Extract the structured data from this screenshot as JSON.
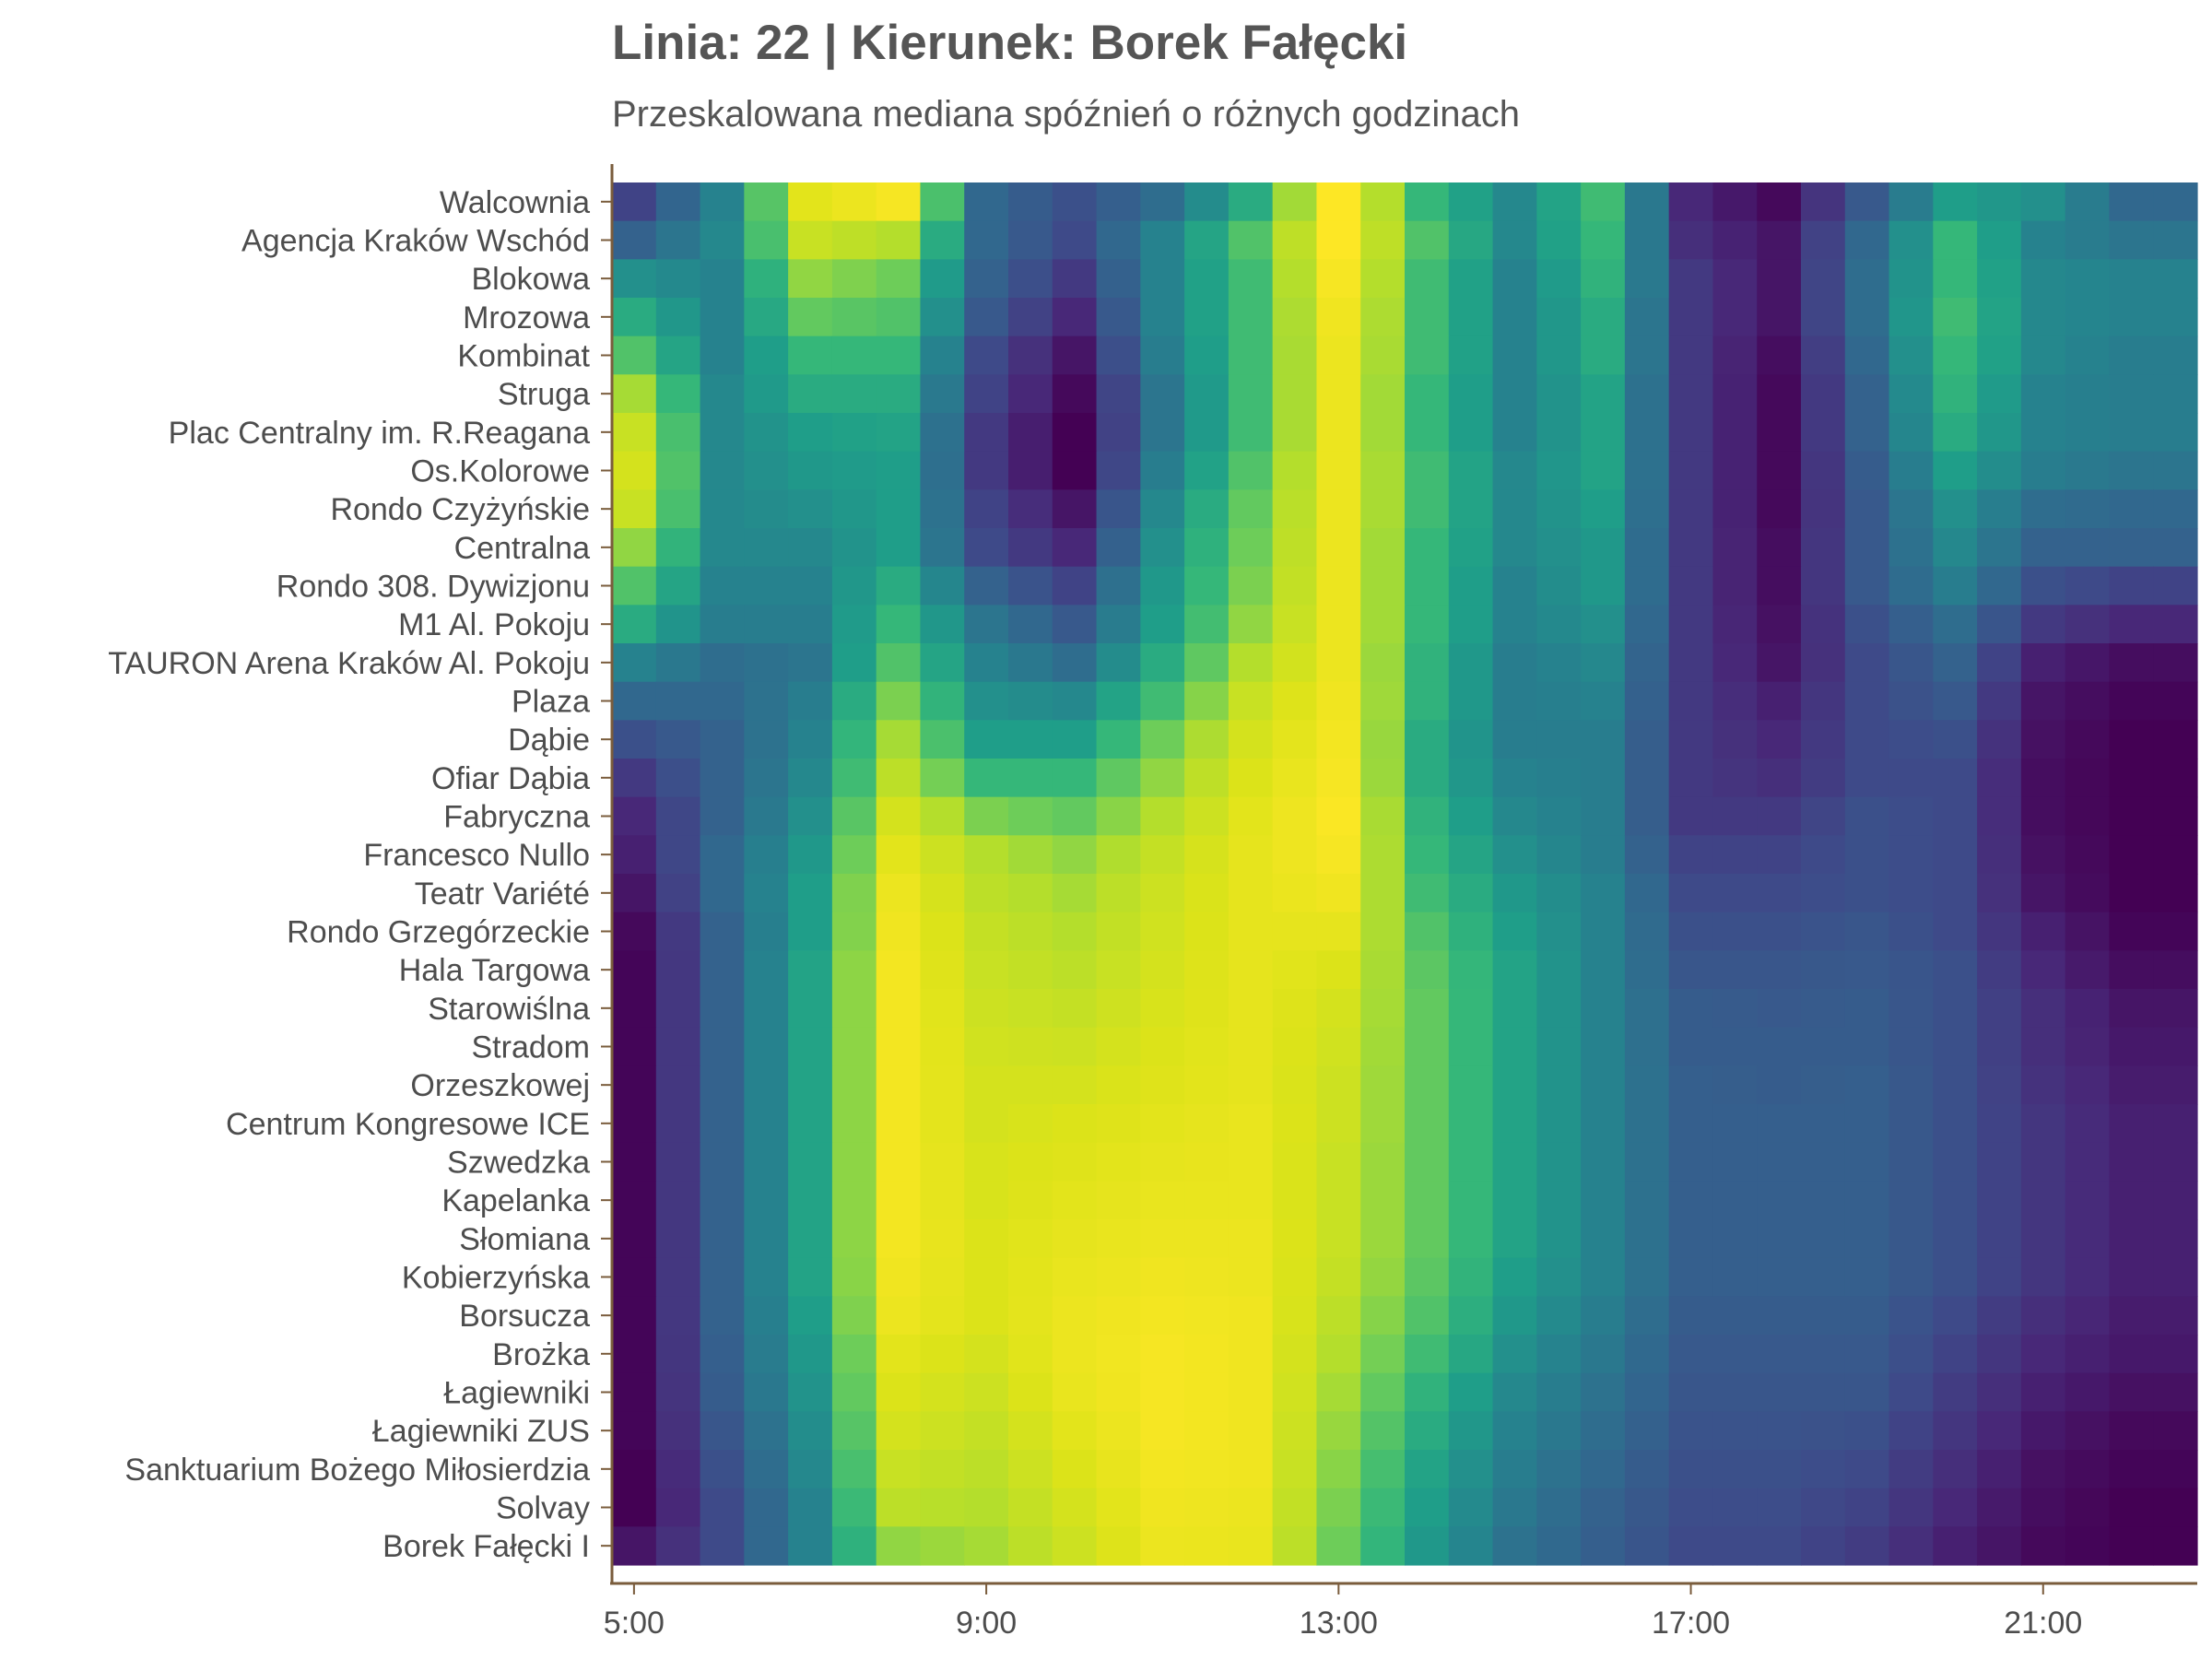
{
  "chart_data": {
    "type": "heatmap",
    "title": "Linia: 22 | Kierunek: Borek Fałęcki",
    "subtitle": "Przeskalowana mediana spóźnień o różnych godzinach",
    "xlabel": "",
    "ylabel": "",
    "colormap": "viridis",
    "value_range": [
      0,
      1
    ],
    "x_hours": [
      5,
      6,
      7,
      8,
      9,
      10,
      11,
      12,
      13,
      14,
      15,
      16,
      17,
      18,
      19,
      20,
      21,
      22
    ],
    "x_ticks": [
      "5:00",
      "9:00",
      "13:00",
      "17:00",
      "21:00"
    ],
    "x_tick_hours": [
      5,
      9,
      13,
      17,
      21
    ],
    "stops": [
      "Walcownia",
      "Agencja Kraków Wschód",
      "Blokowa",
      "Mrozowa",
      "Kombinat",
      "Struga",
      "Plac Centralny im. R.Reagana",
      "Os.Kolorowe",
      "Rondo Czyżyńskie",
      "Centralna",
      "Rondo 308. Dywizjonu",
      "M1 Al. Pokoju",
      "TAURON Arena Kraków Al. Pokoju",
      "Plaza",
      "Dąbie",
      "Ofiar Dąbia",
      "Fabryczna",
      "Francesco Nullo",
      "Teatr Variété",
      "Rondo Grzegórzeckie",
      "Hala Targowa",
      "Starowiślna",
      "Stradom",
      "Orzeszkowej",
      "Centrum Kongresowe ICE",
      "Szwedzka",
      "Kapelanka",
      "Słomiana",
      "Kobierzyńska",
      "Borsucza",
      "Brożka",
      "Łagiewniki",
      "Łagiewniki ZUS",
      "Sanktuarium Bożego Miłosierdzia",
      "Solvay",
      "Borek Fałęcki I"
    ],
    "values": [
      [
        0.18,
        0.4,
        0.92,
        0.98,
        0.3,
        0.22,
        0.32,
        0.55,
        1.0,
        0.6,
        0.42,
        0.62,
        0.1,
        0.02,
        0.25,
        0.5,
        0.45,
        0.3
      ],
      [
        0.28,
        0.42,
        0.85,
        0.8,
        0.3,
        0.2,
        0.4,
        0.65,
        1.0,
        0.65,
        0.42,
        0.6,
        0.12,
        0.05,
        0.3,
        0.6,
        0.4,
        0.35
      ],
      [
        0.45,
        0.4,
        0.75,
        0.7,
        0.28,
        0.15,
        0.4,
        0.62,
        0.98,
        0.62,
        0.4,
        0.58,
        0.15,
        0.05,
        0.32,
        0.6,
        0.42,
        0.4
      ],
      [
        0.55,
        0.4,
        0.68,
        0.65,
        0.25,
        0.1,
        0.4,
        0.62,
        0.96,
        0.62,
        0.4,
        0.55,
        0.15,
        0.05,
        0.32,
        0.62,
        0.42,
        0.4
      ],
      [
        0.65,
        0.4,
        0.6,
        0.6,
        0.2,
        0.05,
        0.38,
        0.62,
        0.95,
        0.62,
        0.4,
        0.55,
        0.15,
        0.03,
        0.3,
        0.6,
        0.42,
        0.38
      ],
      [
        0.78,
        0.42,
        0.55,
        0.55,
        0.18,
        0.02,
        0.35,
        0.62,
        0.95,
        0.6,
        0.4,
        0.52,
        0.15,
        0.02,
        0.28,
        0.58,
        0.4,
        0.38
      ],
      [
        0.85,
        0.42,
        0.5,
        0.52,
        0.15,
        0.0,
        0.35,
        0.62,
        0.95,
        0.6,
        0.4,
        0.52,
        0.15,
        0.02,
        0.28,
        0.55,
        0.4,
        0.38
      ],
      [
        0.88,
        0.42,
        0.48,
        0.5,
        0.15,
        0.0,
        0.38,
        0.65,
        0.95,
        0.62,
        0.42,
        0.52,
        0.15,
        0.02,
        0.26,
        0.5,
        0.38,
        0.35
      ],
      [
        0.85,
        0.42,
        0.45,
        0.5,
        0.18,
        0.05,
        0.42,
        0.68,
        0.95,
        0.62,
        0.42,
        0.5,
        0.15,
        0.02,
        0.25,
        0.45,
        0.32,
        0.3
      ],
      [
        0.75,
        0.42,
        0.42,
        0.5,
        0.2,
        0.1,
        0.45,
        0.7,
        0.95,
        0.6,
        0.42,
        0.48,
        0.15,
        0.03,
        0.25,
        0.42,
        0.28,
        0.28
      ],
      [
        0.65,
        0.4,
        0.4,
        0.55,
        0.28,
        0.18,
        0.48,
        0.72,
        0.95,
        0.6,
        0.4,
        0.48,
        0.15,
        0.03,
        0.25,
        0.38,
        0.22,
        0.18
      ],
      [
        0.55,
        0.38,
        0.38,
        0.6,
        0.35,
        0.25,
        0.5,
        0.75,
        0.95,
        0.6,
        0.4,
        0.45,
        0.15,
        0.04,
        0.22,
        0.32,
        0.15,
        0.1
      ],
      [
        0.4,
        0.32,
        0.35,
        0.65,
        0.4,
        0.32,
        0.55,
        0.8,
        0.95,
        0.58,
        0.38,
        0.42,
        0.15,
        0.05,
        0.2,
        0.28,
        0.08,
        0.03
      ],
      [
        0.3,
        0.3,
        0.38,
        0.72,
        0.45,
        0.42,
        0.62,
        0.85,
        0.96,
        0.58,
        0.38,
        0.4,
        0.15,
        0.08,
        0.2,
        0.25,
        0.05,
        0.01
      ],
      [
        0.22,
        0.28,
        0.4,
        0.78,
        0.5,
        0.5,
        0.7,
        0.88,
        0.97,
        0.55,
        0.38,
        0.38,
        0.15,
        0.1,
        0.2,
        0.22,
        0.04,
        0.0
      ],
      [
        0.15,
        0.28,
        0.42,
        0.82,
        0.6,
        0.6,
        0.75,
        0.9,
        0.98,
        0.55,
        0.4,
        0.38,
        0.15,
        0.12,
        0.2,
        0.2,
        0.03,
        0.0
      ],
      [
        0.1,
        0.28,
        0.45,
        0.88,
        0.72,
        0.68,
        0.8,
        0.92,
        0.99,
        0.58,
        0.42,
        0.38,
        0.15,
        0.15,
        0.22,
        0.2,
        0.03,
        0.0
      ],
      [
        0.08,
        0.3,
        0.48,
        0.92,
        0.8,
        0.75,
        0.84,
        0.93,
        0.98,
        0.6,
        0.45,
        0.38,
        0.18,
        0.18,
        0.22,
        0.2,
        0.04,
        0.0
      ],
      [
        0.05,
        0.3,
        0.5,
        0.95,
        0.82,
        0.78,
        0.86,
        0.93,
        0.96,
        0.62,
        0.48,
        0.4,
        0.2,
        0.2,
        0.22,
        0.2,
        0.05,
        0.0
      ],
      [
        0.02,
        0.28,
        0.5,
        0.96,
        0.84,
        0.8,
        0.87,
        0.93,
        0.93,
        0.65,
        0.5,
        0.4,
        0.22,
        0.22,
        0.24,
        0.2,
        0.08,
        0.01
      ],
      [
        0.01,
        0.28,
        0.52,
        0.97,
        0.85,
        0.82,
        0.88,
        0.93,
        0.9,
        0.67,
        0.52,
        0.4,
        0.24,
        0.24,
        0.25,
        0.22,
        0.1,
        0.03
      ],
      [
        0.01,
        0.28,
        0.52,
        0.97,
        0.86,
        0.84,
        0.89,
        0.93,
        0.88,
        0.68,
        0.52,
        0.4,
        0.26,
        0.25,
        0.26,
        0.22,
        0.12,
        0.05
      ],
      [
        0.01,
        0.28,
        0.52,
        0.97,
        0.87,
        0.86,
        0.9,
        0.93,
        0.87,
        0.68,
        0.52,
        0.4,
        0.26,
        0.26,
        0.26,
        0.22,
        0.12,
        0.06
      ],
      [
        0.01,
        0.28,
        0.52,
        0.97,
        0.88,
        0.88,
        0.91,
        0.93,
        0.86,
        0.68,
        0.52,
        0.4,
        0.27,
        0.26,
        0.27,
        0.22,
        0.13,
        0.07
      ],
      [
        0.01,
        0.28,
        0.52,
        0.97,
        0.88,
        0.9,
        0.92,
        0.94,
        0.86,
        0.68,
        0.52,
        0.4,
        0.27,
        0.27,
        0.27,
        0.22,
        0.14,
        0.08
      ],
      [
        0.01,
        0.28,
        0.52,
        0.97,
        0.89,
        0.91,
        0.93,
        0.94,
        0.85,
        0.68,
        0.52,
        0.4,
        0.27,
        0.27,
        0.27,
        0.22,
        0.14,
        0.08
      ],
      [
        0.01,
        0.28,
        0.52,
        0.97,
        0.89,
        0.92,
        0.94,
        0.94,
        0.85,
        0.68,
        0.52,
        0.4,
        0.27,
        0.27,
        0.27,
        0.22,
        0.14,
        0.08
      ],
      [
        0.01,
        0.28,
        0.52,
        0.97,
        0.9,
        0.93,
        0.95,
        0.95,
        0.85,
        0.68,
        0.52,
        0.4,
        0.27,
        0.27,
        0.27,
        0.22,
        0.14,
        0.08
      ],
      [
        0.01,
        0.28,
        0.52,
        0.96,
        0.9,
        0.94,
        0.96,
        0.95,
        0.84,
        0.67,
        0.5,
        0.4,
        0.27,
        0.27,
        0.27,
        0.22,
        0.14,
        0.08
      ],
      [
        0.01,
        0.28,
        0.5,
        0.95,
        0.9,
        0.95,
        0.97,
        0.96,
        0.82,
        0.65,
        0.48,
        0.38,
        0.26,
        0.26,
        0.26,
        0.2,
        0.12,
        0.07
      ],
      [
        0.01,
        0.27,
        0.48,
        0.92,
        0.88,
        0.95,
        0.98,
        0.96,
        0.8,
        0.62,
        0.45,
        0.36,
        0.25,
        0.25,
        0.25,
        0.18,
        0.1,
        0.06
      ],
      [
        0.01,
        0.26,
        0.46,
        0.9,
        0.86,
        0.94,
        0.98,
        0.96,
        0.78,
        0.58,
        0.42,
        0.34,
        0.24,
        0.24,
        0.24,
        0.16,
        0.08,
        0.04
      ],
      [
        0.01,
        0.24,
        0.44,
        0.88,
        0.84,
        0.92,
        0.98,
        0.96,
        0.76,
        0.55,
        0.4,
        0.32,
        0.23,
        0.23,
        0.22,
        0.14,
        0.06,
        0.02
      ],
      [
        0.0,
        0.22,
        0.42,
        0.85,
        0.82,
        0.9,
        0.97,
        0.96,
        0.74,
        0.52,
        0.38,
        0.3,
        0.22,
        0.22,
        0.2,
        0.12,
        0.04,
        0.01
      ],
      [
        0.0,
        0.2,
        0.4,
        0.82,
        0.8,
        0.88,
        0.96,
        0.95,
        0.72,
        0.5,
        0.36,
        0.28,
        0.21,
        0.21,
        0.18,
        0.1,
        0.03,
        0.0
      ],
      [
        0.05,
        0.2,
        0.4,
        0.75,
        0.78,
        0.86,
        0.95,
        0.94,
        0.7,
        0.48,
        0.34,
        0.27,
        0.2,
        0.2,
        0.16,
        0.08,
        0.02,
        0.0
      ]
    ]
  }
}
